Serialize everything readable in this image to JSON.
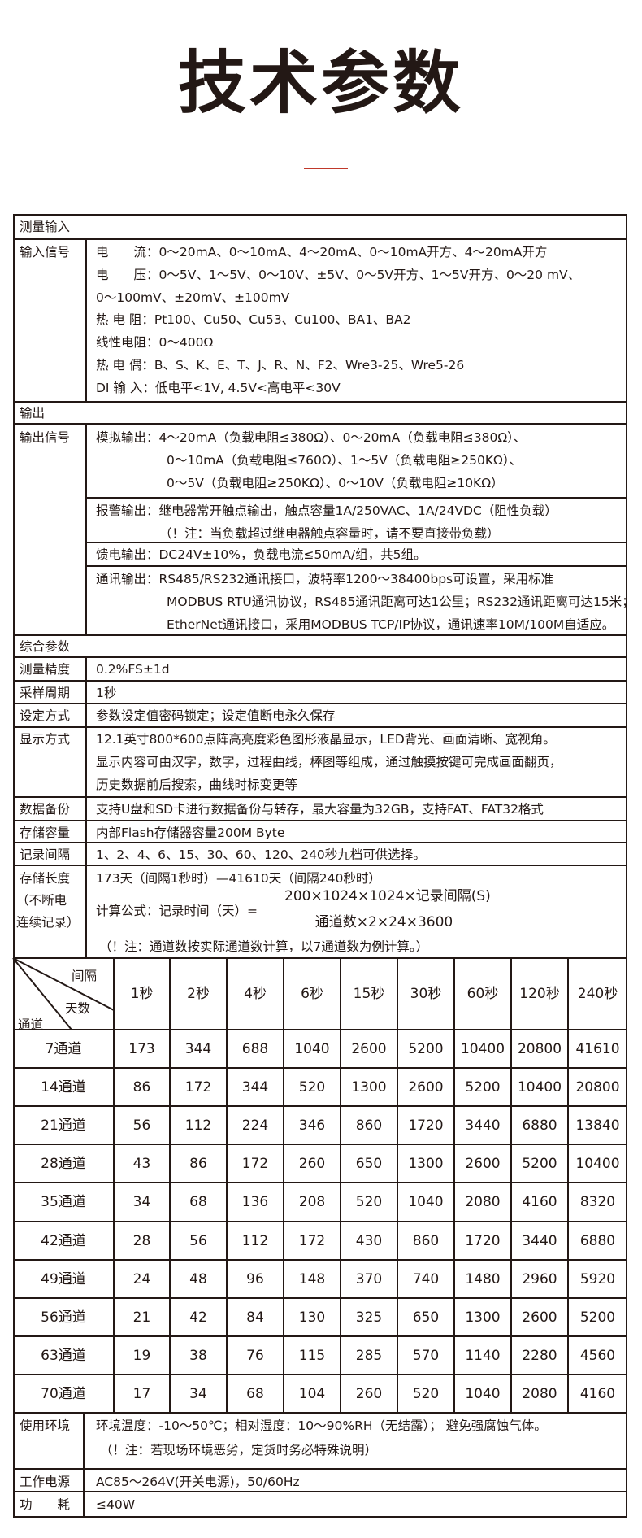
{
  "page": {
    "title": "技术参数",
    "accent_color": "#c0392b",
    "border_color": "#231815"
  },
  "sections": {
    "measure_input": "测量输入",
    "output": "输出",
    "general": "综合参数"
  },
  "input_signal": {
    "label": "输入信号",
    "lines": [
      "电　　流：0～20mA、0～10mA、4～20mA、0～10mA开方、4～20mA开方",
      "电　　压：0～5V、1～5V、0～10V、±5V、0～5V开方、1～5V开方、0～20 mV、",
      "0～100mV、±20mV、±100mV",
      "热 电 阻：Pt100、Cu50、Cu53、Cu100、BA1、BA2",
      "线性电阻：0～400Ω",
      "热 电 偶：B、S、K、E、T、J、R、N、F2、Wre3-25、Wre5-26",
      "DI 输 入：低电平<1V, 4.5V<高电平<30V"
    ]
  },
  "output_signal": {
    "label": "输出信号",
    "analog": [
      "模拟输出：4～20mA（负载电阻≤380Ω）、0～20mA（负载电阻≤380Ω）、",
      "0～10mA（负载电阻≤760Ω）、1～5V（负载电阻≥250KΩ）、",
      "0～5V（负载电阻≥250KΩ）、0～10V（负载电阻≥10KΩ）"
    ],
    "alarm": [
      "报警输出：继电器常开触点输出，触点容量1A/250VAC、1A/24VDC（阻性负载）",
      "（！注：当负载超过继电器触点容量时，请不要直接带负载）"
    ],
    "feed": [
      "馈电输出：DC24V±10%，负载电流≤50mA/组，共5组。"
    ],
    "comm": [
      "通讯输出：RS485/RS232通讯接口，波特率1200～38400bps可设置，采用标准",
      "MODBUS RTU通讯协议，RS485通讯距离可达1公里；RS232通讯距离可达15米；",
      "EtherNet通讯接口，采用MODBUS TCP/IP协议，通讯速率10M/100M自适应。"
    ]
  },
  "params": [
    {
      "label": "测量精度",
      "lines": [
        "0.2%FS±1d"
      ]
    },
    {
      "label": "采样周期",
      "lines": [
        "1秒"
      ]
    },
    {
      "label": "设定方式",
      "lines": [
        "参数设定值密码锁定；设定值断电永久保存"
      ]
    },
    {
      "label": "显示方式",
      "lines": [
        "12.1英寸800*600点阵高亮度彩色图形液晶显示，LED背光、画面清晰、宽视角。",
        "显示内容可由汉字，数字，过程曲线，棒图等组成，通过触摸按键可完成画面翻页，",
        "历史数据前后搜索，曲线时标变更等"
      ]
    },
    {
      "label": "数据备份",
      "lines": [
        "支持U盘和SD卡进行数据备份与转存，最大容量为32GB，支持FAT、FAT32格式"
      ]
    },
    {
      "label": "存储容量",
      "lines": [
        "内部Flash存储器容量200M Byte"
      ]
    },
    {
      "label": "记录间隔",
      "lines": [
        "1、2、4、6、15、30、60、120、240秒九档可供选择。"
      ]
    }
  ],
  "storage": {
    "label_lines": [
      "存储长度",
      "（不断电",
      "连续记录）"
    ],
    "range": "173天（间隔1秒时）—41610天（间隔240秒时）",
    "formula_label": "计算公式：记录时间（天）=",
    "numerator": "200×1024×1024×记录间隔(S)",
    "denominator": "通道数×2×24×3600",
    "note": "（！注：通道数按实际通道数计算，以7通道数为例计算。）"
  },
  "grid": {
    "corner": {
      "top": "间隔",
      "middle": "天数",
      "bottom": "通道"
    },
    "columns": [
      "1秒",
      "2秒",
      "4秒",
      "6秒",
      "15秒",
      "30秒",
      "60秒",
      "120秒",
      "240秒"
    ],
    "rows": [
      {
        "channel": "7通道",
        "values": [
          "173",
          "344",
          "688",
          "1040",
          "2600",
          "5200",
          "10400",
          "20800",
          "41610"
        ]
      },
      {
        "channel": "14通道",
        "values": [
          "86",
          "172",
          "344",
          "520",
          "1300",
          "2600",
          "5200",
          "10400",
          "20800"
        ]
      },
      {
        "channel": "21通道",
        "values": [
          "56",
          "112",
          "224",
          "346",
          "860",
          "1720",
          "3440",
          "6880",
          "13840"
        ]
      },
      {
        "channel": "28通道",
        "values": [
          "43",
          "86",
          "172",
          "260",
          "650",
          "1300",
          "2600",
          "5200",
          "10400"
        ]
      },
      {
        "channel": "35通道",
        "values": [
          "34",
          "68",
          "136",
          "208",
          "520",
          "1040",
          "2080",
          "4160",
          "8320"
        ]
      },
      {
        "channel": "42通道",
        "values": [
          "28",
          "56",
          "112",
          "172",
          "430",
          "860",
          "1720",
          "3440",
          "6880"
        ]
      },
      {
        "channel": "49通道",
        "values": [
          "24",
          "48",
          "96",
          "148",
          "370",
          "740",
          "1480",
          "2960",
          "5920"
        ]
      },
      {
        "channel": "56通道",
        "values": [
          "21",
          "42",
          "84",
          "130",
          "325",
          "650",
          "1300",
          "2600",
          "5200"
        ]
      },
      {
        "channel": "63通道",
        "values": [
          "19",
          "38",
          "76",
          "115",
          "285",
          "570",
          "1140",
          "2280",
          "4560"
        ]
      },
      {
        "channel": "70通道",
        "values": [
          "17",
          "34",
          "68",
          "104",
          "260",
          "520",
          "1040",
          "2080",
          "4160"
        ]
      }
    ]
  },
  "footer": [
    {
      "label": "使用环境",
      "lines": [
        "环境温度：-10～50℃；相对湿度：10～90%RH（无结露）； 避免强腐蚀气体。",
        "（！注：若现场环境恶劣，定货时务必特殊说明）"
      ]
    },
    {
      "label": "工作电源",
      "lines": [
        "AC85～264V(开关电源)，50/60Hz"
      ]
    },
    {
      "label": "功　　耗",
      "lines": [
        "≤40W"
      ]
    }
  ]
}
